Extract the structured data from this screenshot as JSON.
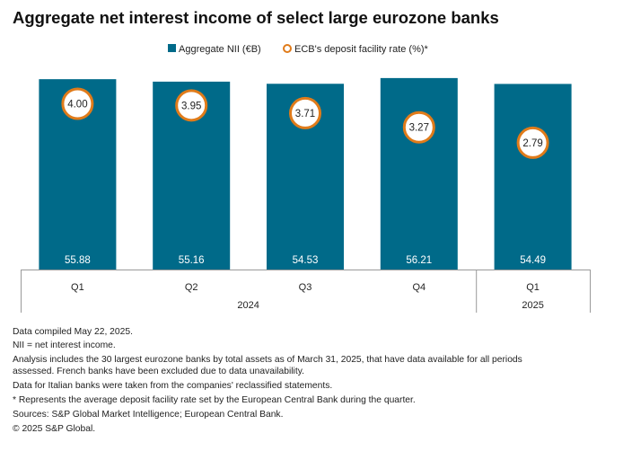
{
  "chart_data": {
    "type": "bar",
    "title": "Aggregate net interest income of select large eurozone banks",
    "categories": [
      "Q1",
      "Q2",
      "Q3",
      "Q4",
      "Q1"
    ],
    "years": [
      {
        "label": "2024",
        "span": 4
      },
      {
        "label": "2025",
        "span": 1
      }
    ],
    "series": [
      {
        "name": "Aggregate NII (€B)",
        "kind": "bar",
        "color": "#006a89",
        "values": [
          55.88,
          55.16,
          54.53,
          56.21,
          54.49
        ],
        "labels": [
          "55.88",
          "55.16",
          "54.53",
          "56.21",
          "54.49"
        ]
      },
      {
        "name": "ECB's deposit facility rate (%)*",
        "kind": "marker",
        "color": "#e07b1a",
        "values": [
          4.0,
          3.95,
          3.71,
          3.27,
          2.79
        ],
        "labels": [
          "4.00",
          "3.95",
          "3.71",
          "3.27",
          "2.79"
        ]
      }
    ],
    "legend_position": "top-center",
    "grid": false
  },
  "notes": [
    "Data compiled May 22, 2025.",
    "NII = net interest income.",
    "Analysis includes the 30 largest eurozone banks by total assets as of March 31, 2025, that have data available for all periods",
    "assessed. French banks have been excluded due to data unavailability.",
    "Data for Italian banks were taken from the companies' reclassified statements.",
    "* Represents the average deposit facility rate set by the European Central Bank during the quarter.",
    "Sources: S&P Global Market Intelligence; European Central Bank.",
    "© 2025 S&P Global."
  ]
}
